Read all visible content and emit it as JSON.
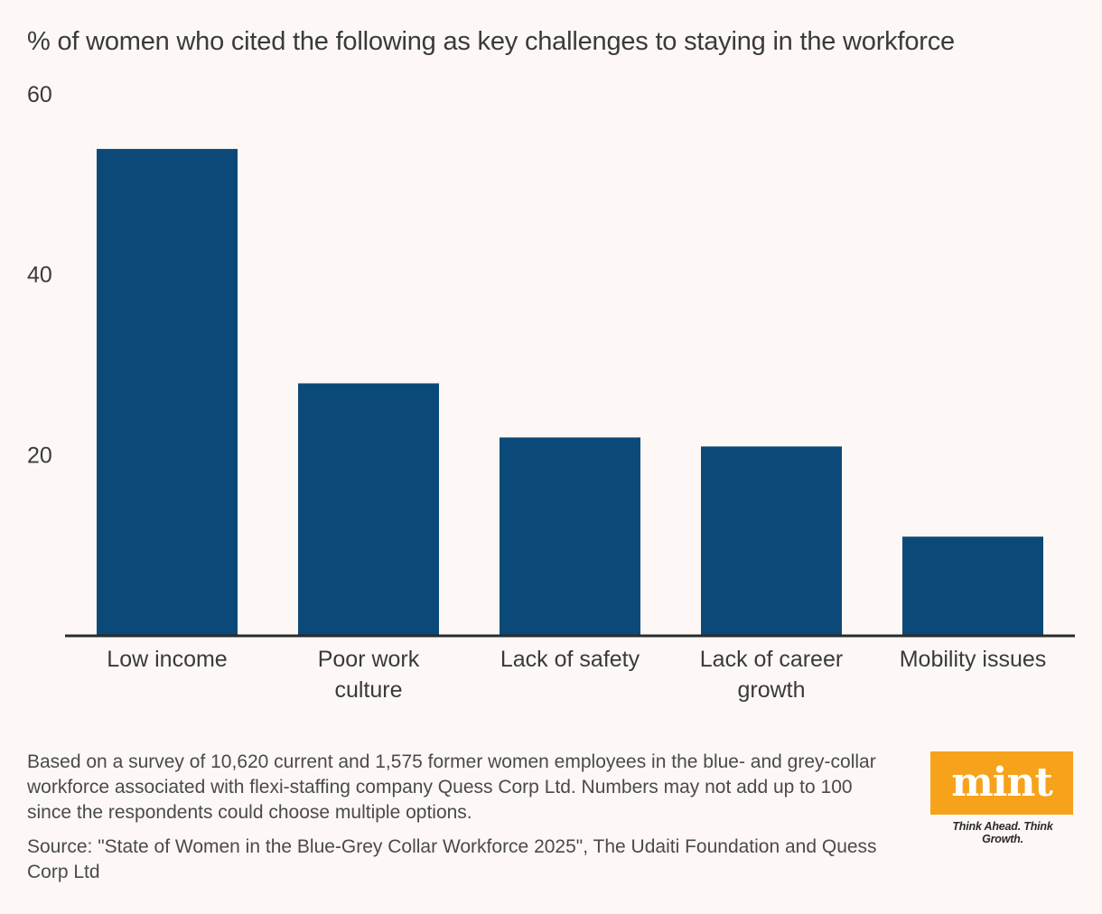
{
  "chart_data": {
    "type": "bar",
    "title": "% of women who cited the following as key challenges to staying in the workforce",
    "categories": [
      "Low income",
      "Poor work culture",
      "Lack of safety",
      "Lack of career growth",
      "Mobility issues"
    ],
    "category_lines": [
      [
        "Low income"
      ],
      [
        "Poor work",
        "culture"
      ],
      [
        "Lack of safety"
      ],
      [
        "Lack of career",
        "growth"
      ],
      [
        "Mobility issues"
      ]
    ],
    "values": [
      53.9,
      27.9,
      21.9,
      20.9,
      10.9
    ],
    "ylim": [
      0,
      60
    ],
    "yticks": [
      20,
      40,
      60
    ],
    "xlabel": "",
    "ylabel": "",
    "grid": false,
    "colors": {
      "bar": "#0b4a78",
      "axis": "#2b2b2b"
    }
  },
  "footnote": "Based on a survey of 10,620 current and 1,575 former women employees in the blue- and grey-collar workforce associated with flexi-staffing company Quess Corp Ltd. Numbers may not add up to 100 since the respondents could choose multiple options.",
  "source": "Source: \"State of Women in the Blue-Grey Collar Workforce 2025\", The Udaiti Foundation and Quess Corp Ltd",
  "logo": {
    "word": "mint",
    "tagline": "Think Ahead. Think Growth.",
    "color": "#f7a21b"
  }
}
